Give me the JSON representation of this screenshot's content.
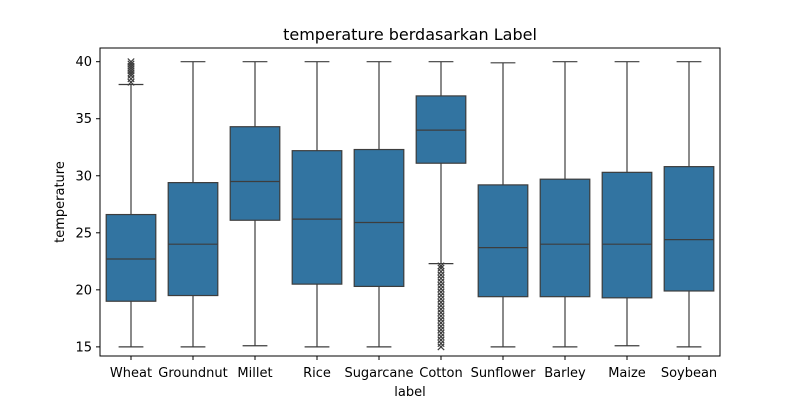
{
  "chart_data": {
    "type": "box",
    "title": "temperature berdasarkan Label",
    "xlabel": "label",
    "ylabel": "temperature",
    "ylim": [
      14.2,
      41.2
    ],
    "yticks": [
      15,
      20,
      25,
      30,
      35,
      40
    ],
    "grid": false,
    "colors": {
      "box": "#3274a1",
      "line": "#3d3d3d"
    },
    "categories": [
      "Wheat",
      "Groundnut",
      "Millet",
      "Rice",
      "Sugarcane",
      "Cotton",
      "Sunflower",
      "Barley",
      "Maize",
      "Soybean"
    ],
    "boxes": [
      {
        "label": "Wheat",
        "whisker_low": 15.0,
        "q1": 19.0,
        "median": 22.7,
        "q3": 26.6,
        "whisker_high": 38.0,
        "outliers": [
          38.2,
          38.5,
          38.8,
          39.0,
          39.2,
          39.4,
          39.6,
          39.8,
          40.0
        ]
      },
      {
        "label": "Groundnut",
        "whisker_low": 15.0,
        "q1": 19.5,
        "median": 24.0,
        "q3": 29.4,
        "whisker_high": 40.0,
        "outliers": []
      },
      {
        "label": "Millet",
        "whisker_low": 15.1,
        "q1": 26.1,
        "median": 29.5,
        "q3": 34.3,
        "whisker_high": 40.0,
        "outliers": []
      },
      {
        "label": "Rice",
        "whisker_low": 15.0,
        "q1": 20.5,
        "median": 26.2,
        "q3": 32.2,
        "whisker_high": 40.0,
        "outliers": []
      },
      {
        "label": "Sugarcane",
        "whisker_low": 15.0,
        "q1": 20.3,
        "median": 25.9,
        "q3": 32.3,
        "whisker_high": 40.0,
        "outliers": []
      },
      {
        "label": "Cotton",
        "whisker_low": 22.3,
        "q1": 31.1,
        "median": 34.0,
        "q3": 37.0,
        "whisker_high": 40.0,
        "outliers": [
          15.0,
          15.3,
          15.6,
          15.9,
          16.2,
          16.5,
          16.8,
          17.1,
          17.4,
          17.7,
          18.0,
          18.3,
          18.6,
          18.9,
          19.2,
          19.5,
          19.8,
          20.1,
          20.4,
          20.7,
          21.0,
          21.3,
          21.6,
          21.9,
          22.1
        ]
      },
      {
        "label": "Sunflower",
        "whisker_low": 15.0,
        "q1": 19.4,
        "median": 23.7,
        "q3": 29.2,
        "whisker_high": 39.9,
        "outliers": []
      },
      {
        "label": "Barley",
        "whisker_low": 15.0,
        "q1": 19.4,
        "median": 24.0,
        "q3": 29.7,
        "whisker_high": 40.0,
        "outliers": []
      },
      {
        "label": "Maize",
        "whisker_low": 15.1,
        "q1": 19.3,
        "median": 24.0,
        "q3": 30.3,
        "whisker_high": 40.0,
        "outliers": []
      },
      {
        "label": "Soybean",
        "whisker_low": 15.0,
        "q1": 19.9,
        "median": 24.4,
        "q3": 30.8,
        "whisker_high": 40.0,
        "outliers": []
      }
    ]
  }
}
